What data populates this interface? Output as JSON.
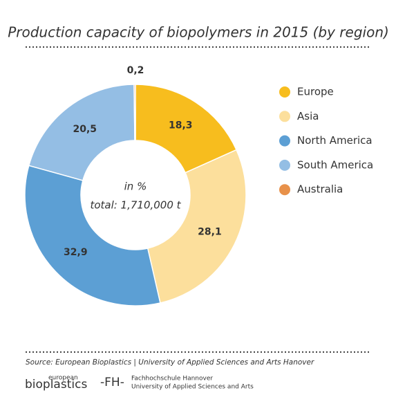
{
  "chart_data": {
    "type": "donut",
    "title": "Production capacity of biopolymers in 2015 (by region)",
    "center_labels": [
      "in %",
      "total: 1,710,000 t"
    ],
    "categories": [
      "Europe",
      "Asia",
      "North America",
      "South America",
      "Australia"
    ],
    "values": [
      18.3,
      28.1,
      32.9,
      20.5,
      0.2
    ],
    "value_labels": [
      "18,3",
      "28,1",
      "32,9",
      "20,5",
      "0,2"
    ],
    "colors": [
      "#f7bd1e",
      "#fcdf9c",
      "#5c9fd4",
      "#94bee4",
      "#e8914a"
    ],
    "legend": "right",
    "source": "Source: European Bioplastics | University of Applied Sciences and Arts Hanover"
  },
  "footer": {
    "logo_left": [
      "european",
      "bioplastics"
    ],
    "logo_right": [
      "-FH-",
      "Fachhochschule Hannover",
      "University of Applied Sciences and Arts"
    ]
  }
}
